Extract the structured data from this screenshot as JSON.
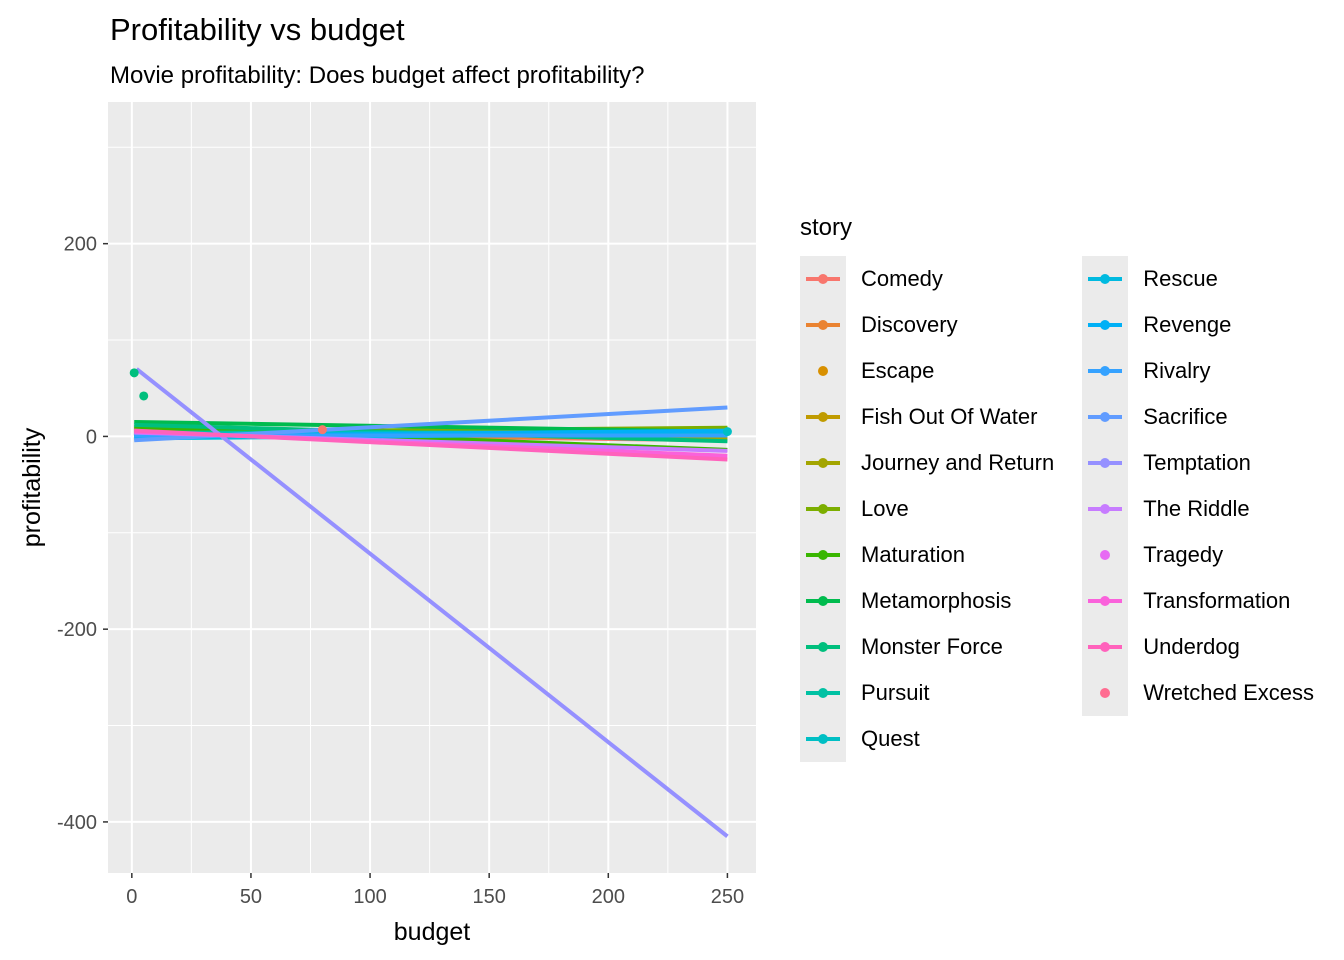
{
  "chart_data": {
    "type": "scatter",
    "title": "Profitability vs budget",
    "subtitle": "Movie profitability: Does budget affect profitability?",
    "xlabel": "budget",
    "ylabel": "profitability",
    "xlim": [
      -10,
      262
    ],
    "ylim": [
      -453,
      347
    ],
    "xticks": [
      0,
      50,
      100,
      150,
      200,
      250
    ],
    "yticks": [
      -400,
      -200,
      0,
      200
    ],
    "grid": true,
    "legend_title": "story",
    "legend_position": "right",
    "series": [
      {
        "name": "Comedy",
        "color": "#F8766D",
        "key": "line",
        "line": [
          [
            1,
            3
          ],
          [
            250,
            -4
          ]
        ],
        "points": [
          [
            80,
            7
          ]
        ]
      },
      {
        "name": "Discovery",
        "color": "#EA8331",
        "key": "line",
        "line": [
          [
            1,
            2
          ],
          [
            250,
            -2
          ]
        ],
        "points": []
      },
      {
        "name": "Escape",
        "color": "#D89000",
        "key": "point",
        "line": null,
        "points": []
      },
      {
        "name": "Fish Out Of Water",
        "color": "#C09B00",
        "key": "line",
        "line": [
          [
            1,
            1
          ],
          [
            250,
            8
          ]
        ],
        "points": []
      },
      {
        "name": "Journey and Return",
        "color": "#A3A500",
        "key": "line",
        "line": [
          [
            1,
            8
          ],
          [
            250,
            -2
          ]
        ],
        "points": []
      },
      {
        "name": "Love",
        "color": "#7CAE00",
        "key": "line",
        "line": [
          [
            1,
            4
          ],
          [
            250,
            9
          ]
        ],
        "points": []
      },
      {
        "name": "Maturation",
        "color": "#39B600",
        "key": "line",
        "line": [
          [
            1,
            10
          ],
          [
            250,
            -14
          ]
        ],
        "points": []
      },
      {
        "name": "Metamorphosis",
        "color": "#00BB4E",
        "key": "line",
        "line": [
          [
            1,
            15
          ],
          [
            250,
            5
          ]
        ],
        "points": []
      },
      {
        "name": "Monster Force",
        "color": "#00BF7D",
        "key": "line",
        "line": [
          [
            1,
            12
          ],
          [
            250,
            -5
          ]
        ],
        "points": [
          [
            1,
            66
          ],
          [
            5,
            42
          ]
        ]
      },
      {
        "name": "Pursuit",
        "color": "#00C1A3",
        "key": "line",
        "line": [
          [
            1,
            4
          ],
          [
            250,
            4
          ]
        ],
        "points": []
      },
      {
        "name": "Quest",
        "color": "#00BFC4",
        "key": "line",
        "line": [
          [
            1,
            2
          ],
          [
            250,
            5
          ]
        ],
        "points": [
          [
            250,
            5
          ]
        ]
      },
      {
        "name": "Rescue",
        "color": "#00BAE0",
        "key": "line",
        "line": [
          [
            1,
            -2
          ],
          [
            250,
            3
          ]
        ],
        "points": []
      },
      {
        "name": "Revenge",
        "color": "#00B0F6",
        "key": "line",
        "line": [
          [
            1,
            0
          ],
          [
            250,
            6
          ]
        ],
        "points": []
      },
      {
        "name": "Rivalry",
        "color": "#35A2FF",
        "key": "line",
        "line": [
          [
            1,
            1
          ],
          [
            250,
            1
          ]
        ],
        "points": []
      },
      {
        "name": "Sacrifice",
        "color": "#619CFF",
        "key": "line",
        "line": [
          [
            1,
            -4
          ],
          [
            250,
            30
          ]
        ],
        "points": []
      },
      {
        "name": "Temptation",
        "color": "#9590FF",
        "key": "line",
        "line": [
          [
            2,
            70
          ],
          [
            250,
            -415
          ]
        ],
        "points": []
      },
      {
        "name": "The Riddle",
        "color": "#C77CFF",
        "key": "line",
        "line": [
          [
            1,
            4
          ],
          [
            250,
            -15
          ]
        ],
        "points": []
      },
      {
        "name": "Tragedy",
        "color": "#E76BF3",
        "key": "point",
        "line": null,
        "points": []
      },
      {
        "name": "Transformation",
        "color": "#FA62DB",
        "key": "line",
        "line": [
          [
            1,
            5
          ],
          [
            250,
            -20
          ]
        ],
        "points": []
      },
      {
        "name": "Underdog",
        "color": "#FF62BC",
        "key": "line",
        "line": [
          [
            1,
            6
          ],
          [
            250,
            -24
          ]
        ],
        "points": []
      },
      {
        "name": "Wretched Excess",
        "color": "#FF6C91",
        "key": "point",
        "line": null,
        "points": []
      }
    ]
  }
}
